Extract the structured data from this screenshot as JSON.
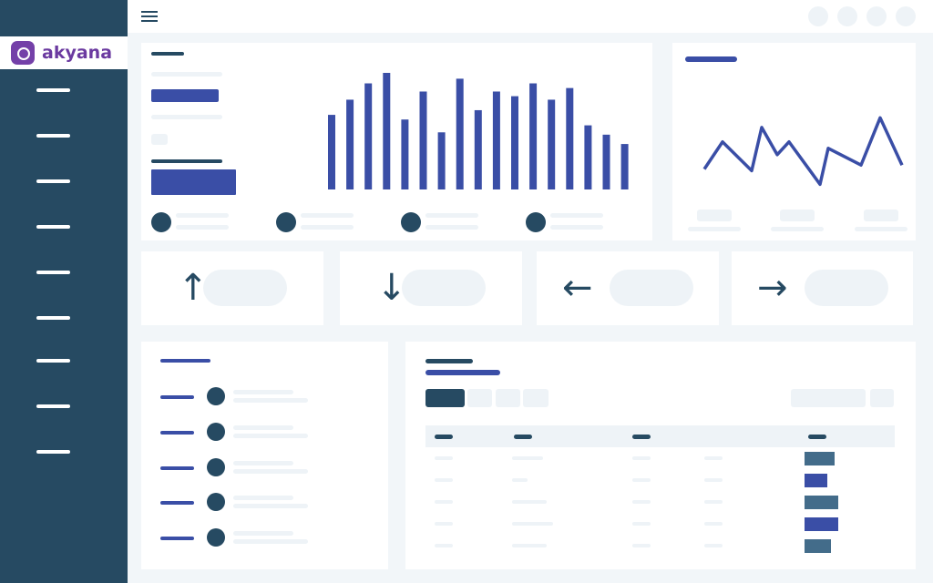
{
  "brand": {
    "name": "akyana",
    "color": "#6b3aa0"
  },
  "colors": {
    "sidebar": "#264a62",
    "accent": "#3a4ea6",
    "background": "#f2f6f9",
    "muted_bar": "#436c8a"
  },
  "icons": {
    "menu": "hamburger-icon",
    "arrows": [
      "arrow-up-icon",
      "arrow-down-icon",
      "arrow-left-icon",
      "arrow-right-icon"
    ]
  },
  "chart_data": [
    {
      "type": "bar",
      "values": [
        0.64,
        0.77,
        0.91,
        1.0,
        0.6,
        0.84,
        0.49,
        0.95,
        0.68,
        0.84,
        0.8,
        0.91,
        0.77,
        0.87,
        0.55,
        0.47,
        0.39
      ]
    },
    {
      "type": "line",
      "values": [
        0.22,
        0.56,
        0.2,
        0.74,
        0.4,
        0.56,
        0.03,
        0.48,
        0.27,
        0.86,
        0.27
      ]
    }
  ]
}
